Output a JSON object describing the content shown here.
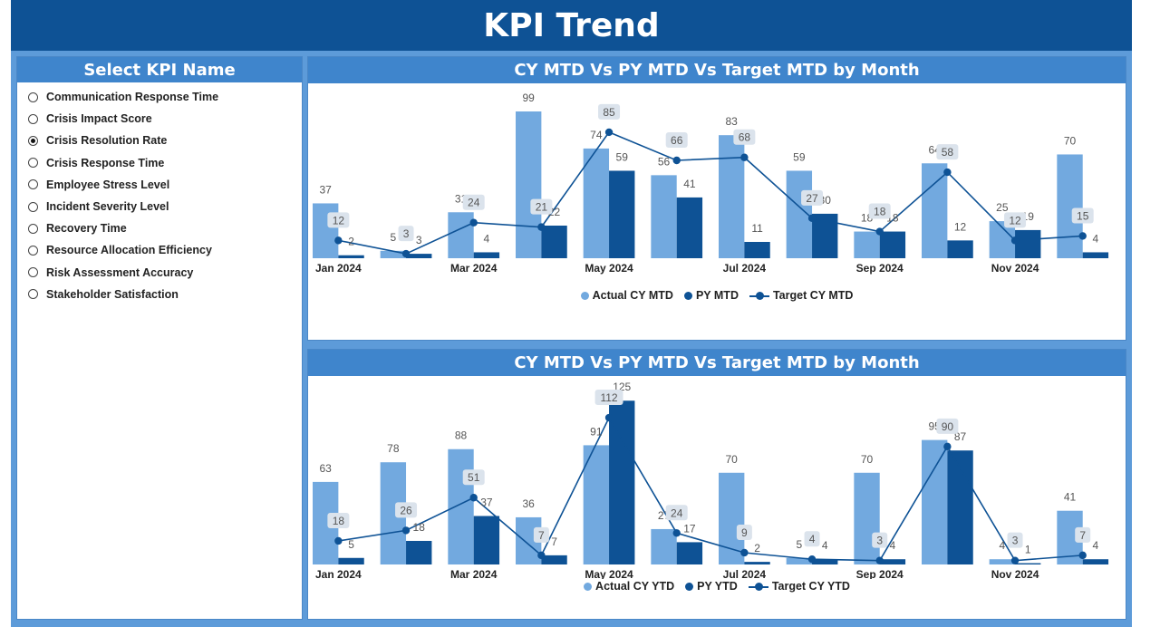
{
  "page_title": "KPI Trend",
  "colors": {
    "actual": "#72a9df",
    "py": "#0e5295",
    "target": "#0e5295",
    "label_box": "#dbe3ec"
  },
  "kpi_panel": {
    "title": "Select KPI Name",
    "items": [
      {
        "label": "Communication Response Time",
        "selected": false
      },
      {
        "label": "Crisis Impact Score",
        "selected": false
      },
      {
        "label": "Crisis Resolution Rate",
        "selected": true
      },
      {
        "label": "Crisis Response Time",
        "selected": false
      },
      {
        "label": "Employee Stress Level",
        "selected": false
      },
      {
        "label": "Incident Severity Level",
        "selected": false
      },
      {
        "label": "Recovery Time",
        "selected": false
      },
      {
        "label": "Resource Allocation Efficiency",
        "selected": false
      },
      {
        "label": "Risk Assessment Accuracy",
        "selected": false
      },
      {
        "label": "Stakeholder Satisfaction",
        "selected": false
      }
    ]
  },
  "chart_data": [
    {
      "type": "bar",
      "title": "CY MTD Vs PY MTD Vs Target MTD by Month",
      "categories": [
        "Jan 2024",
        "Feb 2024",
        "Mar 2024",
        "Apr 2024",
        "May 2024",
        "Jun 2024",
        "Jul 2024",
        "Aug 2024",
        "Sep 2024",
        "Oct 2024",
        "Nov 2024",
        "Dec 2024"
      ],
      "tick_labels": [
        "Jan 2024",
        "",
        "Mar 2024",
        "",
        "May 2024",
        "",
        "Jul 2024",
        "",
        "Sep 2024",
        "",
        "Nov 2024",
        ""
      ],
      "series": [
        {
          "name": "Actual CY MTD",
          "type": "bar",
          "values": [
            37,
            5,
            31,
            99,
            74,
            56,
            83,
            59,
            18,
            64,
            25,
            70
          ]
        },
        {
          "name": "PY MTD",
          "type": "bar",
          "values": [
            2,
            3,
            4,
            22,
            59,
            41,
            11,
            30,
            18,
            12,
            19,
            4
          ]
        },
        {
          "name": "Target CY MTD",
          "type": "line",
          "values": [
            12,
            3,
            24,
            21,
            85,
            66,
            68,
            27,
            18,
            58,
            12,
            15
          ]
        }
      ],
      "ylim": [
        0,
        110
      ],
      "legend": "bottom-center"
    },
    {
      "type": "bar",
      "title": "CY MTD Vs PY MTD Vs Target MTD by Month",
      "categories": [
        "Jan 2024",
        "Feb 2024",
        "Mar 2024",
        "Apr 2024",
        "May 2024",
        "Jun 2024",
        "Jul 2024",
        "Aug 2024",
        "Sep 2024",
        "Oct 2024",
        "Nov 2024",
        "Dec 2024"
      ],
      "tick_labels": [
        "Jan 2024",
        "",
        "Mar 2024",
        "",
        "May 2024",
        "",
        "Jul 2024",
        "",
        "Sep 2024",
        "",
        "Nov 2024",
        ""
      ],
      "series": [
        {
          "name": "Actual CY YTD",
          "type": "bar",
          "values": [
            63,
            78,
            88,
            36,
            91,
            27,
            70,
            5,
            70,
            95,
            4,
            41
          ]
        },
        {
          "name": "PY YTD",
          "type": "bar",
          "values": [
            5,
            18,
            37,
            7,
            125,
            17,
            2,
            4,
            4,
            87,
            1,
            4
          ]
        },
        {
          "name": "Target CY YTD",
          "type": "line",
          "values": [
            18,
            26,
            51,
            7,
            112,
            24,
            9,
            4,
            3,
            90,
            3,
            7
          ]
        }
      ],
      "ylim": [
        0,
        130
      ],
      "legend": "bottom-center"
    }
  ]
}
